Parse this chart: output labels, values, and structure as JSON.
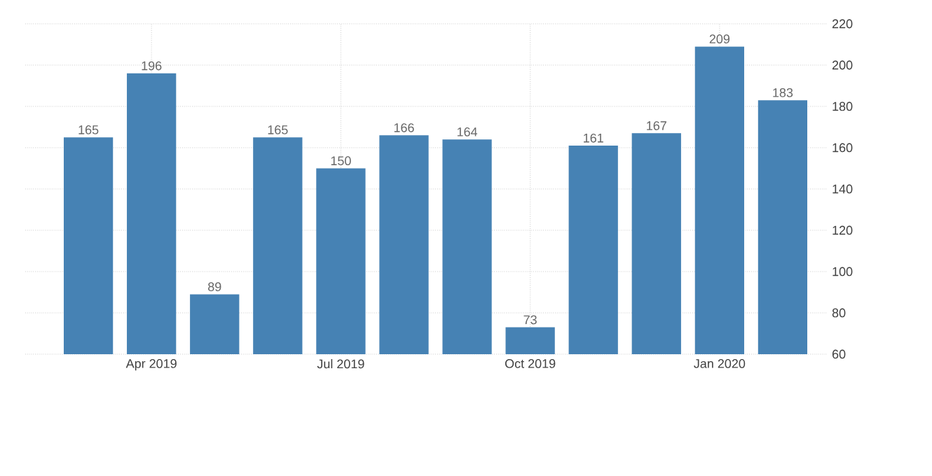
{
  "chart_data": {
    "type": "bar",
    "categories": [
      null,
      "Apr 2019",
      null,
      null,
      "Jul 2019",
      null,
      null,
      "Oct 2019",
      null,
      null,
      "Jan 2020",
      null
    ],
    "values": [
      165,
      196,
      89,
      165,
      150,
      166,
      164,
      73,
      161,
      167,
      209,
      183
    ],
    "color": "#4682b4",
    "ylim": [
      60,
      220
    ],
    "yticks": [
      60,
      80,
      100,
      120,
      140,
      160,
      180,
      200,
      220
    ],
    "grid": true,
    "data_labels": true
  }
}
